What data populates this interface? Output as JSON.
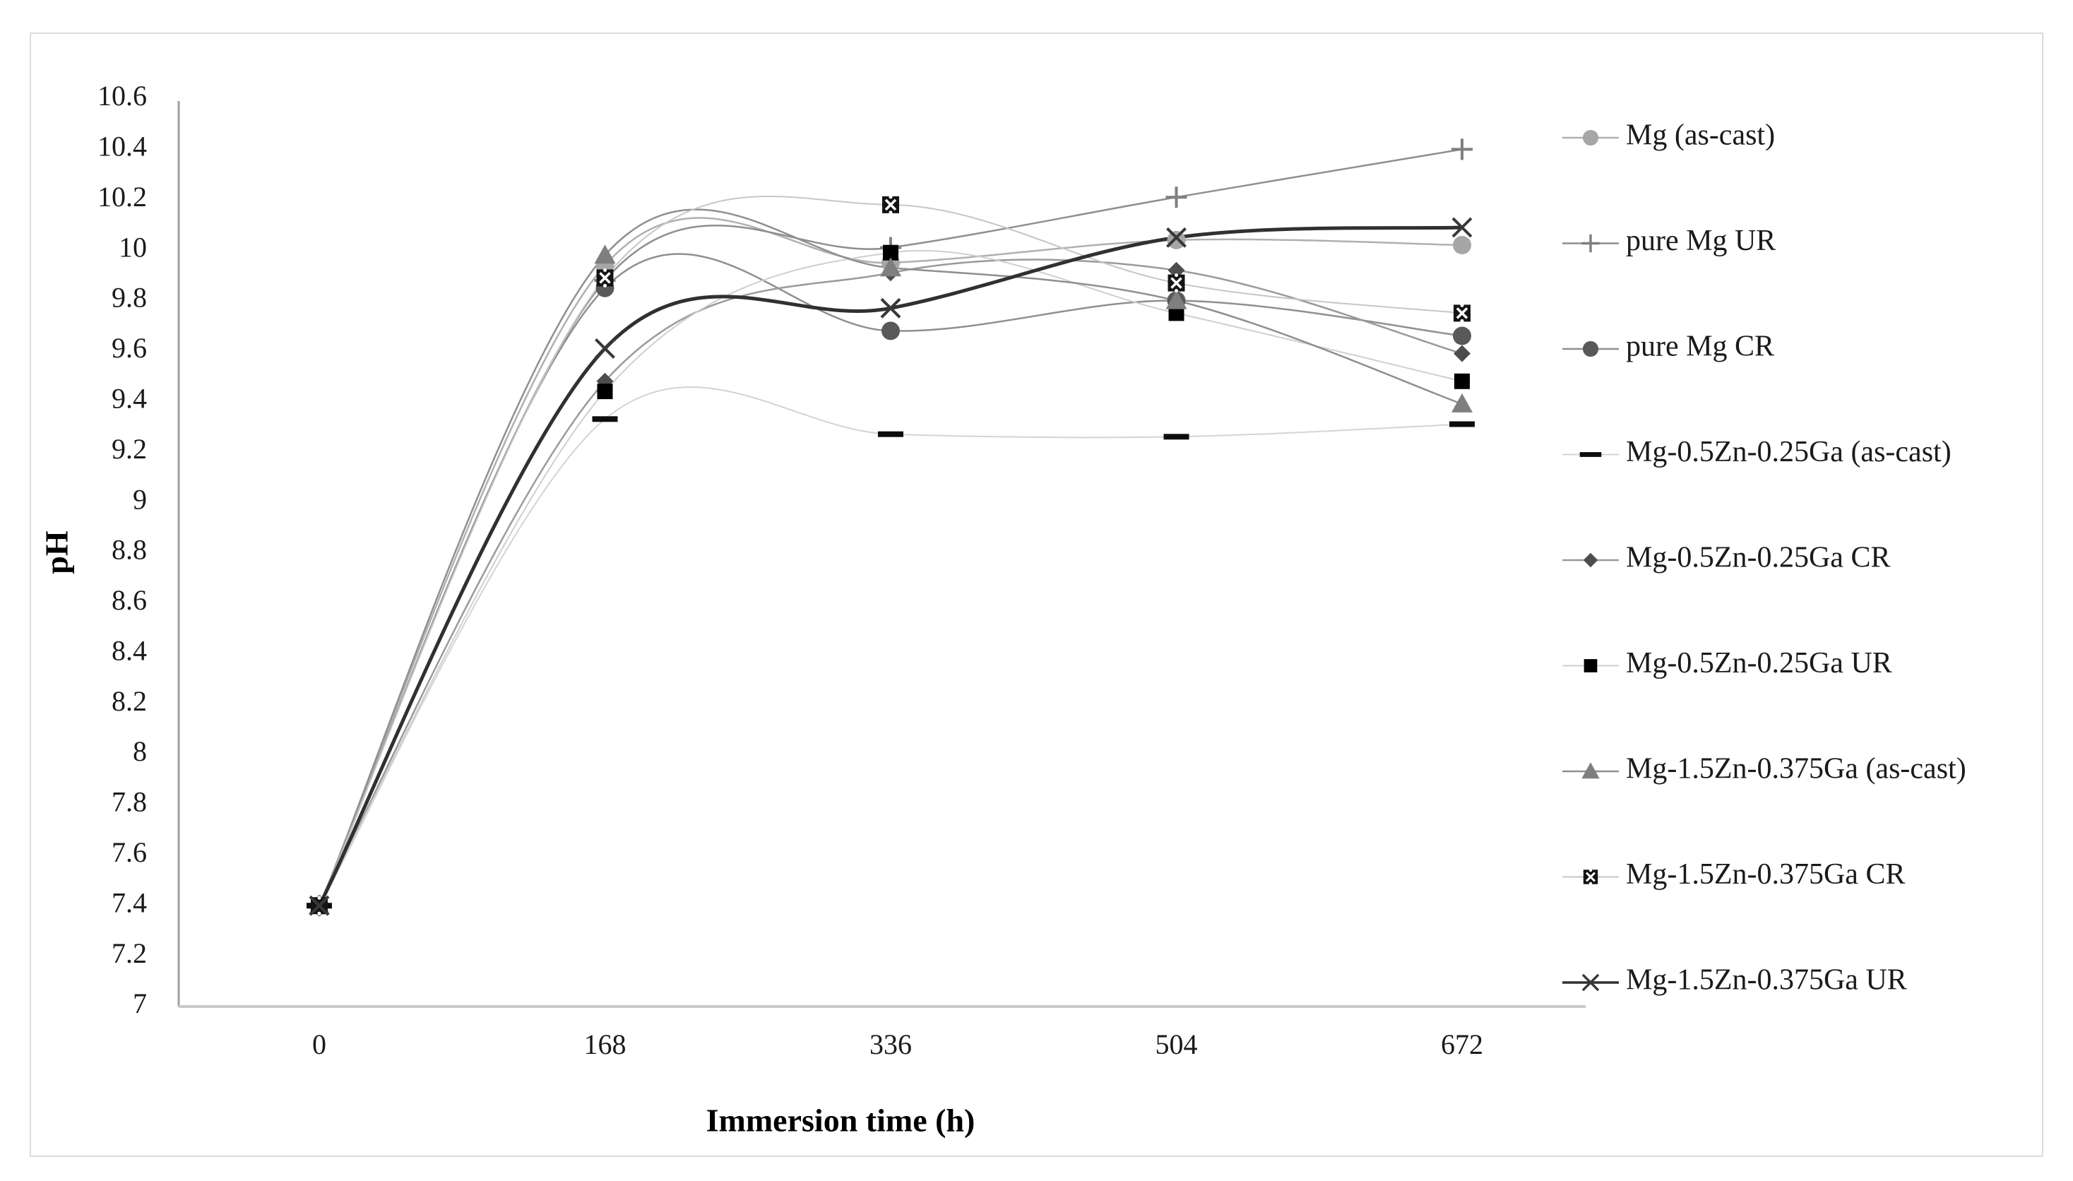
{
  "figure": {
    "background": "#ffffff",
    "frame_border_color": "#dcdcdc"
  },
  "chart_data": {
    "type": "line",
    "title": "",
    "xlabel": "Immersion time (h)",
    "ylabel": "pH",
    "x": [
      0,
      168,
      336,
      504,
      672
    ],
    "xtick_labels": [
      "0",
      "168",
      "336",
      "504",
      "672"
    ],
    "ylim": [
      7,
      10.6
    ],
    "ytick_step": 0.2,
    "ytick_labels": [
      "10.6",
      "10.4",
      "10.2",
      "10",
      "9.8",
      "9.6",
      "9.4",
      "9.2",
      "9",
      "8.8",
      "8.6",
      "8.4",
      "8.2",
      "8",
      "7.8",
      "7.6",
      "7.4",
      "7.2",
      "7"
    ],
    "grid": false,
    "smooth_lines": true,
    "legend_position": "right",
    "axis_color_y": "#a0a0a0",
    "axis_color_x": "#c9c9c9",
    "series": [
      {
        "name": "Mg (as-cast)",
        "marker": "circle",
        "marker_color": "#a6a6a6",
        "line_color": "#b0b0b0",
        "line_width": 2.5,
        "values": [
          7.4,
          9.94,
          9.95,
          10.04,
          10.02
        ]
      },
      {
        "name": "pure Mg UR",
        "marker": "plus",
        "marker_color": "#7f7f7f",
        "line_color": "#8f8f8f",
        "line_width": 2.5,
        "values": [
          7.4,
          9.88,
          10.01,
          10.21,
          10.4
        ]
      },
      {
        "name": "pure Mg CR",
        "marker": "circle",
        "marker_color": "#595959",
        "line_color": "#8f8f8f",
        "line_width": 2.5,
        "values": [
          7.4,
          9.85,
          9.68,
          9.8,
          9.66
        ]
      },
      {
        "name": "Mg-0.5Zn-0.25Ga (as-cast)",
        "marker": "dash",
        "marker_color": "#0d0d0d",
        "line_color": "#d4d4d4",
        "line_width": 2,
        "values": [
          7.4,
          9.33,
          9.27,
          9.26,
          9.31
        ]
      },
      {
        "name": "Mg-0.5Zn-0.25Ga CR",
        "marker": "diamond",
        "marker_color": "#4d4d4d",
        "line_color": "#9a9a9a",
        "line_width": 2.5,
        "values": [
          7.4,
          9.48,
          9.91,
          9.92,
          9.59
        ]
      },
      {
        "name": "Mg-0.5Zn-0.25Ga UR",
        "marker": "square",
        "marker_color": "#000000",
        "line_color": "#cfcfcf",
        "line_width": 2,
        "values": [
          7.4,
          9.44,
          9.99,
          9.75,
          9.48
        ]
      },
      {
        "name": "Mg-1.5Zn-0.375Ga (as-cast)",
        "marker": "triangle",
        "marker_color": "#7f7f7f",
        "line_color": "#8f8f8f",
        "line_width": 2.5,
        "values": [
          7.4,
          9.98,
          9.93,
          9.8,
          9.39
        ]
      },
      {
        "name": "Mg-1.5Zn-0.375Ga CR",
        "marker": "square-x",
        "marker_color": "#141414",
        "line_color": "#c6c6c6",
        "line_width": 2,
        "values": [
          7.4,
          9.89,
          10.18,
          9.87,
          9.75
        ]
      },
      {
        "name": "Mg-1.5Zn-0.375Ga UR",
        "marker": "x",
        "marker_color": "#383838",
        "line_color": "#303030",
        "line_width": 5,
        "values": [
          7.4,
          9.61,
          9.77,
          10.05,
          10.09
        ]
      }
    ]
  }
}
